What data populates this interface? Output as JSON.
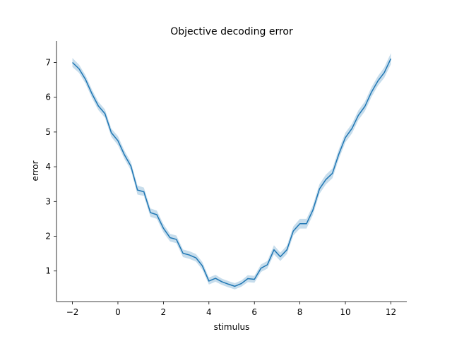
{
  "chart_data": {
    "type": "line",
    "title": "Objective decoding error",
    "xlabel": "stimulus",
    "ylabel": "error",
    "xlim": [
      -2.7,
      12.7
    ],
    "ylim": [
      0.12,
      7.62
    ],
    "xticks": [
      -2,
      0,
      2,
      4,
      6,
      8,
      10,
      12
    ],
    "yticks": [
      1,
      2,
      3,
      4,
      5,
      6,
      7
    ],
    "xtick_labels": [
      "−2",
      "0",
      "2",
      "4",
      "6",
      "8",
      "10",
      "12"
    ],
    "ytick_labels": [
      "1",
      "2",
      "3",
      "4",
      "5",
      "6",
      "7"
    ],
    "line_color": "#1f77b4",
    "band_color": "#1f77b4",
    "grid": false,
    "series": [
      {
        "name": "error",
        "x": [
          -2.0,
          -1.71,
          -1.43,
          -1.14,
          -0.86,
          -0.57,
          -0.29,
          0.0,
          0.29,
          0.57,
          0.86,
          1.14,
          1.43,
          1.71,
          2.0,
          2.29,
          2.57,
          2.86,
          3.14,
          3.43,
          3.71,
          4.0,
          4.29,
          4.57,
          4.86,
          5.14,
          5.43,
          5.71,
          6.0,
          6.29,
          6.57,
          6.86,
          7.14,
          7.43,
          7.71,
          8.0,
          8.29,
          8.57,
          8.86,
          9.14,
          9.43,
          9.71,
          10.0,
          10.29,
          10.57,
          10.86,
          11.14,
          11.43,
          11.71,
          12.0
        ],
        "y": [
          7.0,
          6.82,
          6.52,
          6.1,
          5.75,
          5.53,
          4.98,
          4.75,
          4.34,
          4.02,
          3.33,
          3.28,
          2.68,
          2.62,
          2.23,
          1.96,
          1.91,
          1.51,
          1.46,
          1.38,
          1.15,
          0.71,
          0.79,
          0.69,
          0.62,
          0.56,
          0.64,
          0.78,
          0.76,
          1.08,
          1.18,
          1.61,
          1.41,
          1.61,
          2.15,
          2.36,
          2.36,
          2.75,
          3.36,
          3.63,
          3.81,
          4.36,
          4.84,
          5.1,
          5.48,
          5.74,
          6.14,
          6.47,
          6.71,
          7.11
        ],
        "ci_half_width": [
          0.13,
          0.12,
          0.12,
          0.12,
          0.12,
          0.12,
          0.12,
          0.13,
          0.12,
          0.12,
          0.13,
          0.12,
          0.12,
          0.12,
          0.12,
          0.11,
          0.11,
          0.11,
          0.11,
          0.11,
          0.11,
          0.1,
          0.1,
          0.09,
          0.09,
          0.09,
          0.09,
          0.1,
          0.1,
          0.11,
          0.11,
          0.13,
          0.12,
          0.12,
          0.13,
          0.14,
          0.14,
          0.14,
          0.14,
          0.14,
          0.14,
          0.14,
          0.14,
          0.14,
          0.14,
          0.14,
          0.14,
          0.14,
          0.15,
          0.16
        ]
      }
    ]
  }
}
